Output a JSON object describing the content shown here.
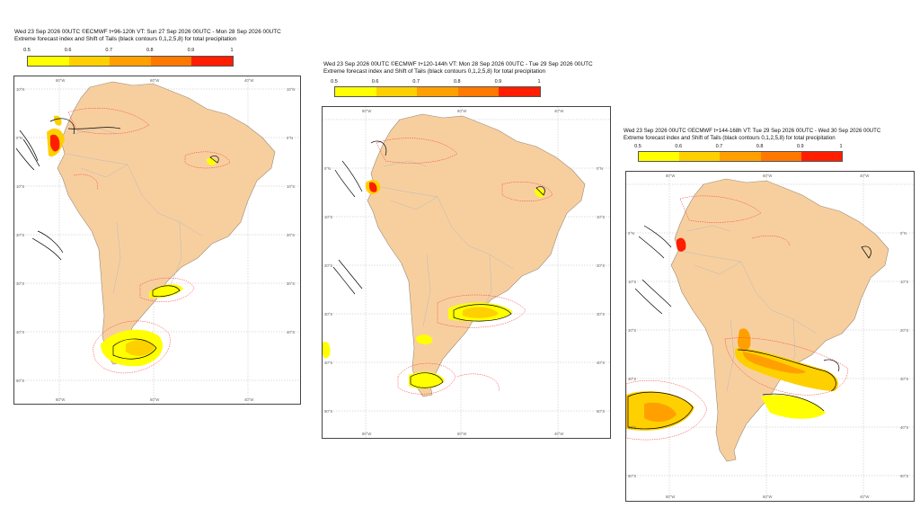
{
  "legend": {
    "ticks": [
      "0.5",
      "0.6",
      "0.7",
      "0.8",
      "0.9",
      "1"
    ],
    "colors": [
      "#ffff00",
      "#ffd000",
      "#ffa000",
      "#ff7800",
      "#ff1e00"
    ]
  },
  "map_colors": {
    "ocean": "#ffffff",
    "land": "#f7cf9f",
    "border": "#b9b9b9",
    "lake": "#a9a9a9",
    "contour": "#000000",
    "dashed": "#ff3030"
  },
  "panels": [
    {
      "title_line1": "Wed 23 Sep 2026 00UTC ©ECMWF t+96-120h  VT: Sun 27 Sep 2026 00UTC - Mon 28 Sep 2026 00UTC",
      "title_line2": "Extreme forecast index and Shift of Tails (black contours 0,1,2,5,8) for total precipitation",
      "lon_labels": [
        "80°W",
        "60°W",
        "40°W",
        "80°W",
        "60°W",
        "40°W"
      ],
      "lat_labels": [
        "10°N",
        "0°N",
        "10°S",
        "20°S",
        "30°S",
        "40°S",
        "50°S"
      ]
    },
    {
      "title_line1": "Wed 23 Sep 2026 00UTC ©ECMWF t+120-144h  VT: Mon 28 Sep 2026 00UTC - Tue 29 Sep 2026 00UTC",
      "title_line2": "Extreme forecast index and Shift of Tails (black contours 0,1,2,5,8) for total precipitation",
      "lon_labels": [
        "80°W",
        "60°W",
        "40°W",
        "80°W",
        "60°W",
        "40°W"
      ],
      "lat_labels": [
        "10°N",
        "0°N",
        "10°S",
        "20°S",
        "30°S",
        "40°S",
        "50°S"
      ]
    },
    {
      "title_line1": "Wed 23 Sep 2026 00UTC ©ECMWF t+144-168h  VT: Tue 29 Sep 2026 00UTC - Wed 30 Sep 2026 00UTC",
      "title_line2": "Extreme forecast index and Shift of Tails (black contours 0,1,2,5,8) for total precipitation",
      "lon_labels": [
        "80°W",
        "60°W",
        "40°W",
        "80°W",
        "60°W",
        "40°W"
      ],
      "lat_labels": [
        "10°N",
        "0°N",
        "10°S",
        "20°S",
        "30°S",
        "40°S",
        "50°S"
      ]
    }
  ]
}
